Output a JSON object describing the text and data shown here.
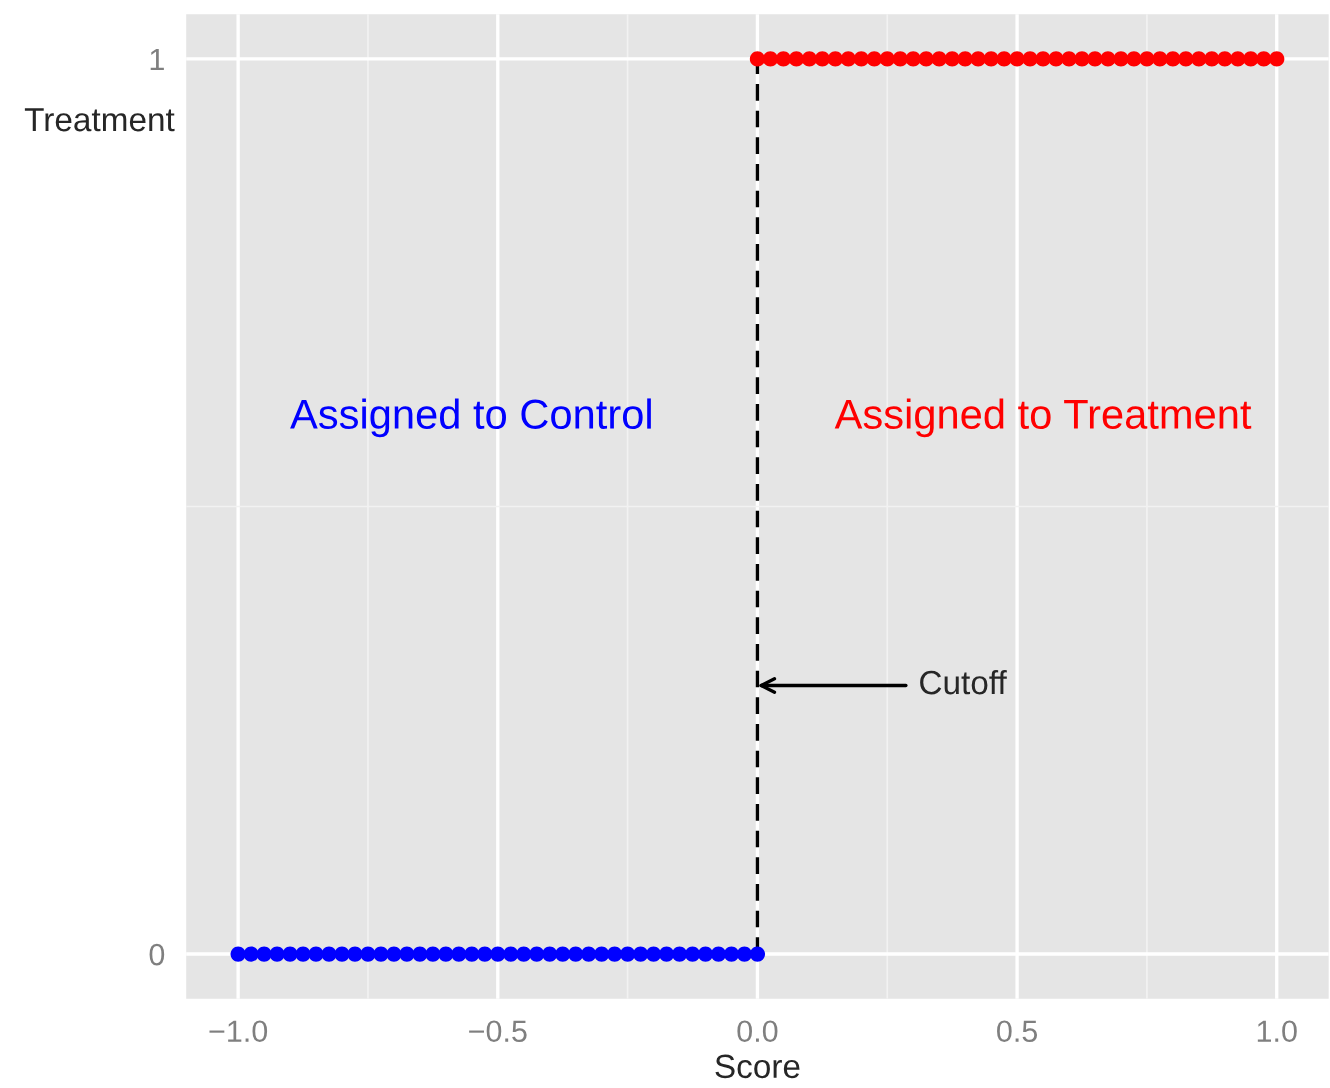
{
  "chart_data": {
    "type": "scatter",
    "xlabel": "Score",
    "ylabel": "Treatment",
    "series": [
      {
        "color": "#0000ff",
        "x": [
          -1.0,
          -0.975,
          -0.95,
          -0.925,
          -0.9,
          -0.875,
          -0.85,
          -0.825,
          -0.8,
          -0.775,
          -0.75,
          -0.725,
          -0.7,
          -0.675,
          -0.65,
          -0.625,
          -0.6,
          -0.575,
          -0.55,
          -0.525,
          -0.5,
          -0.475,
          -0.45,
          -0.425,
          -0.4,
          -0.375,
          -0.35,
          -0.325,
          -0.3,
          -0.275,
          -0.25,
          -0.225,
          -0.2,
          -0.175,
          -0.15,
          -0.125,
          -0.1,
          -0.075,
          -0.05,
          -0.025,
          0.0
        ],
        "values": [
          0,
          0,
          0,
          0,
          0,
          0,
          0,
          0,
          0,
          0,
          0,
          0,
          0,
          0,
          0,
          0,
          0,
          0,
          0,
          0,
          0,
          0,
          0,
          0,
          0,
          0,
          0,
          0,
          0,
          0,
          0,
          0,
          0,
          0,
          0,
          0,
          0,
          0,
          0,
          0,
          0
        ]
      },
      {
        "color": "#ff0000",
        "x": [
          0.0,
          0.025,
          0.05,
          0.075,
          0.1,
          0.125,
          0.15,
          0.175,
          0.2,
          0.225,
          0.25,
          0.275,
          0.3,
          0.325,
          0.35,
          0.375,
          0.4,
          0.425,
          0.45,
          0.475,
          0.5,
          0.525,
          0.55,
          0.575,
          0.6,
          0.625,
          0.65,
          0.675,
          0.7,
          0.725,
          0.75,
          0.775,
          0.8,
          0.825,
          0.85,
          0.875,
          0.9,
          0.925,
          0.95,
          0.975,
          1.0
        ],
        "values": [
          1,
          1,
          1,
          1,
          1,
          1,
          1,
          1,
          1,
          1,
          1,
          1,
          1,
          1,
          1,
          1,
          1,
          1,
          1,
          1,
          1,
          1,
          1,
          1,
          1,
          1,
          1,
          1,
          1,
          1,
          1,
          1,
          1,
          1,
          1,
          1,
          1,
          1,
          1,
          1,
          1
        ]
      }
    ],
    "marker": "circle",
    "xlim": [
      -1.1,
      1.1
    ],
    "ylim": [
      -0.05,
      1.05
    ],
    "xticks": [
      {
        "value": -1.0,
        "label": "−1.0"
      },
      {
        "value": -0.5,
        "label": "−0.5"
      },
      {
        "value": 0.0,
        "label": "0.0"
      },
      {
        "value": 0.5,
        "label": "0.5"
      },
      {
        "value": 1.0,
        "label": "1.0"
      }
    ],
    "yticks": [
      0,
      1
    ],
    "ref_lines": [
      {
        "axis": "x",
        "value": 0,
        "color": "#000000",
        "line_style": "dashed"
      }
    ],
    "annotations": [
      "Assigned to Control",
      "Assigned to Treatment",
      {
        "text": "Cutoff",
        "x": 0.0,
        "y": 0.3
      }
    ],
    "grid": true,
    "legend": false
  }
}
